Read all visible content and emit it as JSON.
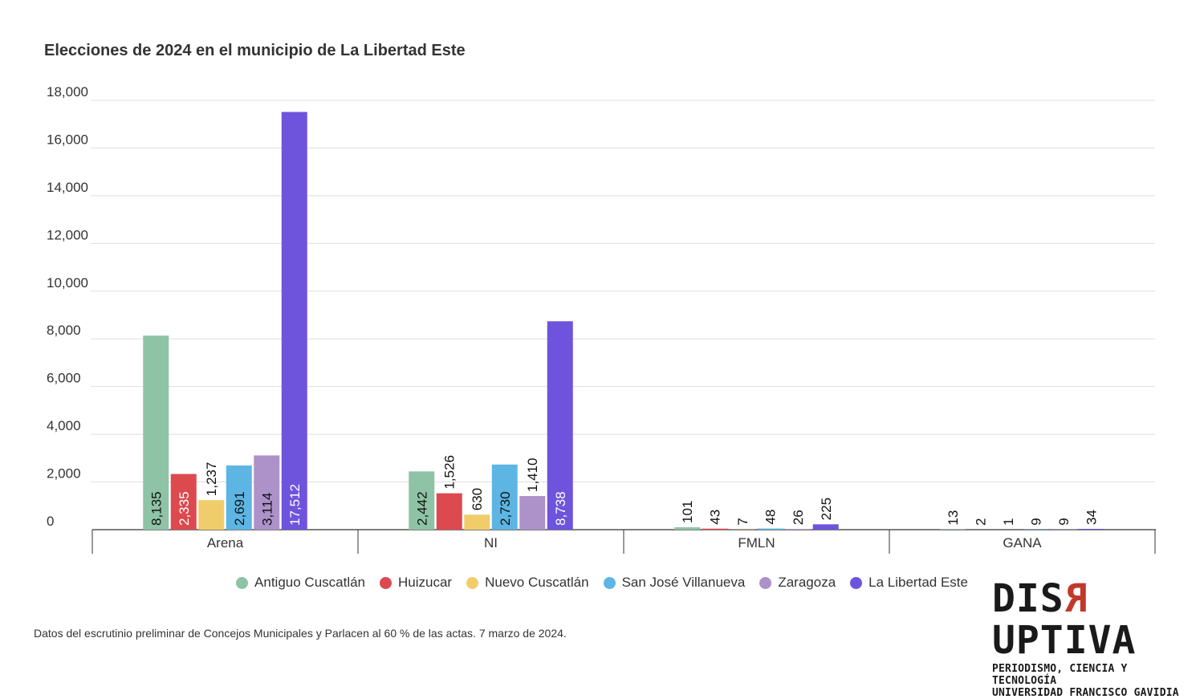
{
  "title": "Elecciones de 2024 en el municipio de La Libertad Este",
  "footnote": "Datos del escrutinio preliminar de Concejos Municipales y Parlacen al 60 % de las actas. 7 marzo de 2024.",
  "logo": {
    "word_pre": "DIS",
    "word_r": "R",
    "word_post": "UPTIVA",
    "line1": "PERIODISMO, CIENCIA Y TECNOLOGÍA",
    "line2": "UNIVERSIDAD FRANCISCO GAVIDIA",
    "accent_color": "#c0392b"
  },
  "chart_data": {
    "type": "bar",
    "title": "Elecciones de 2024 en el municipio de La Libertad Este",
    "xlabel": "",
    "ylabel": "",
    "ylim": [
      0,
      18000
    ],
    "yticks": [
      0,
      2000,
      4000,
      6000,
      8000,
      10000,
      12000,
      14000,
      16000,
      18000
    ],
    "ytick_labels": [
      "0",
      "2,000",
      "4,000",
      "6,000",
      "8,000",
      "10,000",
      "12,000",
      "14,000",
      "16,000",
      "18,000"
    ],
    "grid": true,
    "legend_position": "bottom",
    "categories": [
      "Arena",
      "NI",
      "FMLN",
      "GANA"
    ],
    "series": [
      {
        "name": "Antiguo Cuscatlán",
        "color": "#8fc3a6",
        "values": [
          8135,
          2442,
          101,
          13
        ],
        "labels": [
          "8,135",
          "2,442",
          "101",
          "13"
        ]
      },
      {
        "name": "Huizucar",
        "color": "#dc4a4f",
        "values": [
          2335,
          1526,
          43,
          2
        ],
        "labels": [
          "2,335",
          "1,526",
          "43",
          "2"
        ]
      },
      {
        "name": "Nuevo Cuscatlán",
        "color": "#f0cd6a",
        "values": [
          1237,
          630,
          7,
          1
        ],
        "labels": [
          "1,237",
          "630",
          "7",
          "1"
        ]
      },
      {
        "name": "San José Villanueva",
        "color": "#5db5e3",
        "values": [
          2691,
          2730,
          48,
          9
        ],
        "labels": [
          "2,691",
          "2,730",
          "48",
          "9"
        ]
      },
      {
        "name": "Zaragoza",
        "color": "#ad91c9",
        "values": [
          3114,
          1410,
          26,
          9
        ],
        "labels": [
          "3,114",
          "1,410",
          "26",
          "9"
        ]
      },
      {
        "name": "La Libertad Este",
        "color": "#6e54dc",
        "values": [
          17512,
          8738,
          225,
          34
        ],
        "labels": [
          "17,512",
          "8,738",
          "225",
          "34"
        ]
      }
    ]
  }
}
